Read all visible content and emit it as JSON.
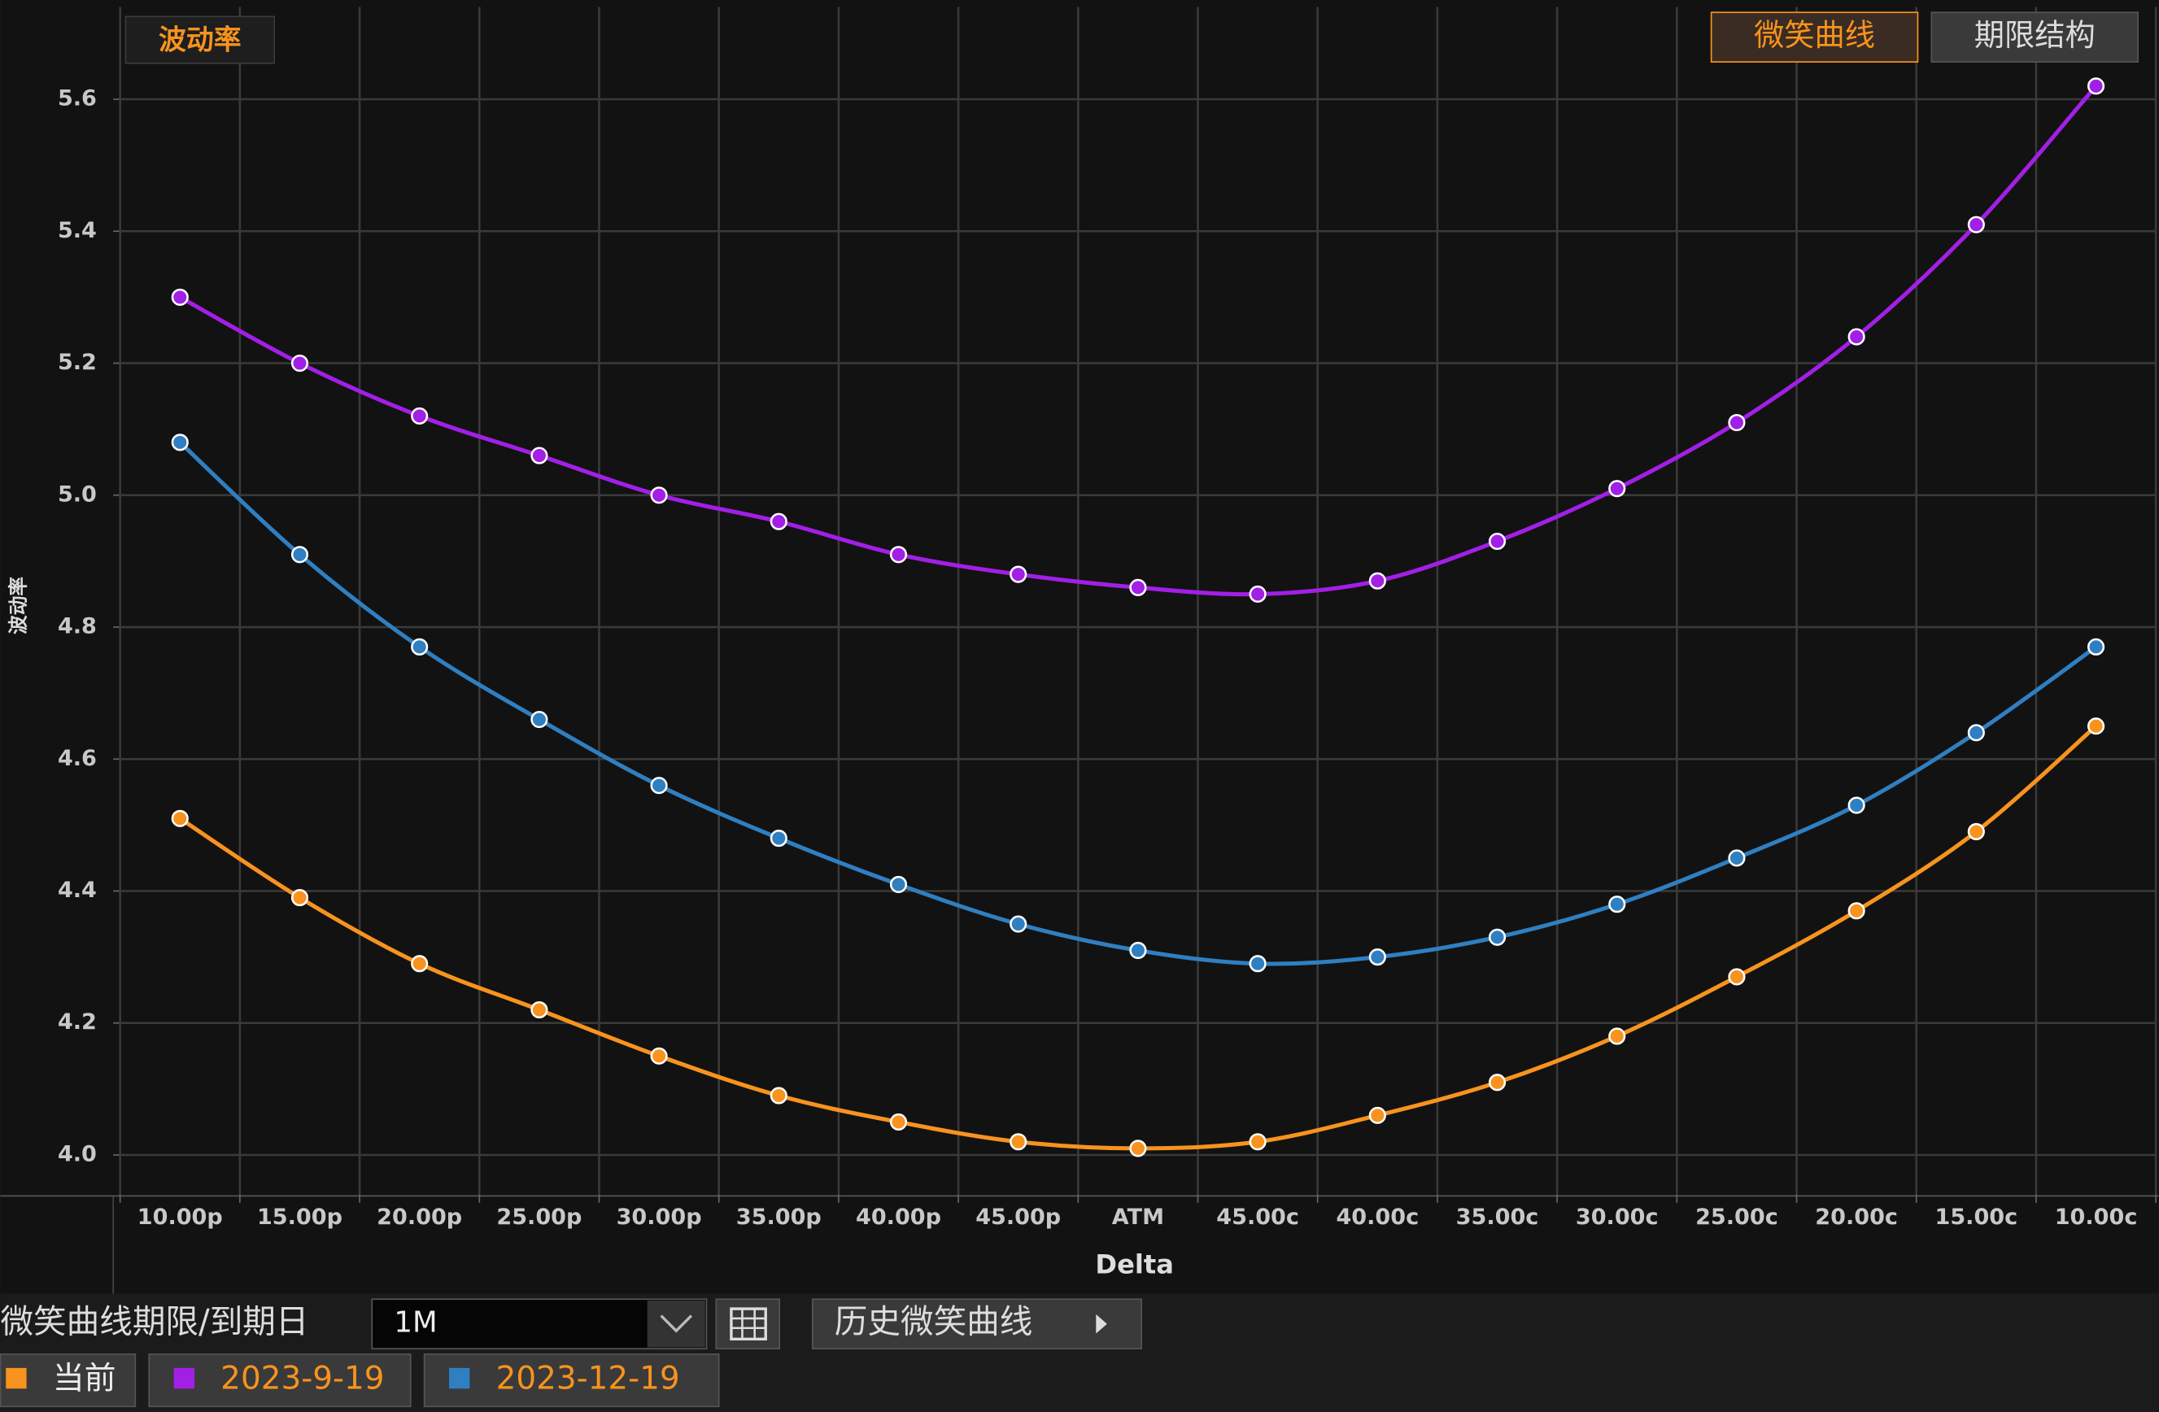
{
  "chart_data": {
    "type": "line",
    "title": "波动率",
    "y_label": "波动率",
    "x_label": "Delta",
    "categories": [
      "10.00p",
      "15.00p",
      "20.00p",
      "25.00p",
      "30.00p",
      "35.00p",
      "40.00p",
      "45.00p",
      "ATM",
      "45.00c",
      "40.00c",
      "35.00c",
      "30.00c",
      "25.00c",
      "20.00c",
      "15.00c",
      "10.00c"
    ],
    "series": [
      {
        "name": "当前",
        "color": "#f7931e",
        "values": [
          4.51,
          4.39,
          4.29,
          4.22,
          4.15,
          4.09,
          4.05,
          4.02,
          4.01,
          4.02,
          4.06,
          4.11,
          4.18,
          4.27,
          4.37,
          4.49,
          4.65
        ]
      },
      {
        "name": "2023-9-19",
        "color": "#a21fe6",
        "values": [
          5.3,
          5.2,
          5.12,
          5.06,
          5.0,
          4.96,
          4.91,
          4.88,
          4.86,
          4.85,
          4.87,
          4.93,
          5.01,
          5.11,
          5.24,
          5.41,
          5.62
        ]
      },
      {
        "name": "2023-12-19",
        "color": "#2f7fc1",
        "values": [
          5.08,
          4.91,
          4.77,
          4.66,
          4.56,
          4.48,
          4.41,
          4.35,
          4.31,
          4.29,
          4.3,
          4.33,
          4.38,
          4.45,
          4.53,
          4.64,
          4.77
        ]
      }
    ],
    "ylim": [
      3.94,
      5.74
    ],
    "yticks": [
      {
        "value": 4,
        "label": "4.0"
      },
      4.2,
      4.4,
      4.6,
      4.8,
      {
        "value": 5,
        "label": "5.0"
      },
      5.2,
      5.4,
      5.6
    ],
    "grid": true
  },
  "controls": {
    "tabs": [
      "微笑曲线",
      "期限结构"
    ],
    "tenor_label": "微笑曲线期限/到期日",
    "tenor_value": "1M",
    "history_button": "历史微笑曲线"
  }
}
